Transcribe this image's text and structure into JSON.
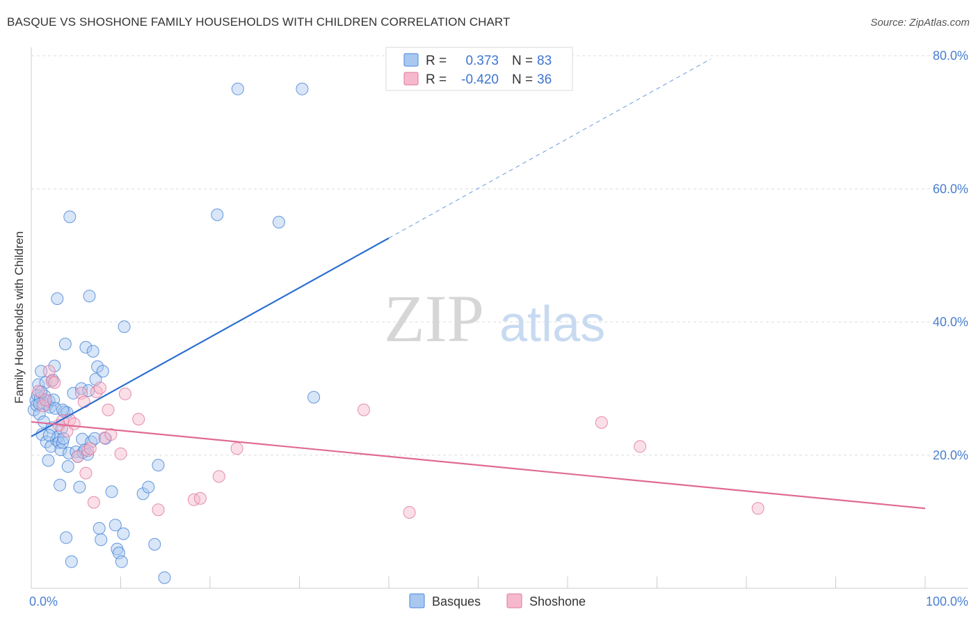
{
  "header": {
    "title": "BASQUE VS SHOSHONE FAMILY HOUSEHOLDS WITH CHILDREN CORRELATION CHART",
    "source": "Source: ZipAtlas.com"
  },
  "watermark": {
    "zip": "ZIP",
    "atlas": "atlas"
  },
  "legend_top": [
    {
      "r_label": "R =",
      "r_value": "0.373",
      "n_label": "N =",
      "n_value": "83"
    },
    {
      "r_label": "R =",
      "r_value": "-0.420",
      "n_label": "N =",
      "n_value": "36"
    }
  ],
  "legend_bottom": [
    {
      "label": "Basques"
    },
    {
      "label": "Shoshone"
    }
  ],
  "chart_data": {
    "type": "scatter",
    "title": "BASQUE VS SHOSHONE FAMILY HOUSEHOLDS WITH CHILDREN CORRELATION CHART",
    "xlabel": "",
    "ylabel": "Family Households with Children",
    "xlim": [
      0,
      100
    ],
    "ylim": [
      0,
      80
    ],
    "x_tick_labels": [
      "0.0%",
      "100.0%"
    ],
    "y_tick_labels": [
      "20.0%",
      "40.0%",
      "60.0%",
      "80.0%"
    ],
    "y_ticks": [
      20,
      40,
      60,
      80
    ],
    "grid": true,
    "legend_position": "top-center",
    "colors": {
      "basques_fill": "#a8c8f0",
      "basques_stroke": "#4a86d8",
      "basques_line": "#2a6fd0",
      "shoshone_fill": "#f5b8cc",
      "shoshone_stroke": "#e07a9c",
      "shoshone_line": "#e06a94"
    },
    "series": [
      {
        "name": "Basques",
        "r": 0.373,
        "n": 83,
        "trend": {
          "x": [
            0,
            40
          ],
          "y": [
            22.8,
            52.6
          ],
          "dashed_to": [
            76,
            79.5
          ]
        },
        "points": [
          [
            0.3,
            26.8
          ],
          [
            0.5,
            28.2
          ],
          [
            0.6,
            27.5
          ],
          [
            0.7,
            29.0
          ],
          [
            0.8,
            30.6
          ],
          [
            0.9,
            26.2
          ],
          [
            1.0,
            28.6
          ],
          [
            1.1,
            32.6
          ],
          [
            1.2,
            23.1
          ],
          [
            1.3,
            27.8
          ],
          [
            1.4,
            25.0
          ],
          [
            1.5,
            28.9
          ],
          [
            1.6,
            30.9
          ],
          [
            1.7,
            22.0
          ],
          [
            1.8,
            27.6
          ],
          [
            1.9,
            19.2
          ],
          [
            2.0,
            28.1
          ],
          [
            2.1,
            27.2
          ],
          [
            2.2,
            21.3
          ],
          [
            2.3,
            24.1
          ],
          [
            2.4,
            31.3
          ],
          [
            2.5,
            28.3
          ],
          [
            2.6,
            33.4
          ],
          [
            2.7,
            27.0
          ],
          [
            2.8,
            22.3
          ],
          [
            2.9,
            43.5
          ],
          [
            3.0,
            22.8
          ],
          [
            3.1,
            21.9
          ],
          [
            3.2,
            15.5
          ],
          [
            3.3,
            20.8
          ],
          [
            3.4,
            24.0
          ],
          [
            3.5,
            21.9
          ],
          [
            3.6,
            22.5
          ],
          [
            3.7,
            26.5
          ],
          [
            3.8,
            36.7
          ],
          [
            3.9,
            7.6
          ],
          [
            4.0,
            26.4
          ],
          [
            4.1,
            18.3
          ],
          [
            4.2,
            20.3
          ],
          [
            4.3,
            55.8
          ],
          [
            4.5,
            4.0
          ],
          [
            4.7,
            29.3
          ],
          [
            5.0,
            20.5
          ],
          [
            5.2,
            19.8
          ],
          [
            5.4,
            15.2
          ],
          [
            5.6,
            30.0
          ],
          [
            5.7,
            22.4
          ],
          [
            5.8,
            20.4
          ],
          [
            6.0,
            20.8
          ],
          [
            6.1,
            36.2
          ],
          [
            6.3,
            20.1
          ],
          [
            6.4,
            29.7
          ],
          [
            6.5,
            43.9
          ],
          [
            6.7,
            22.0
          ],
          [
            6.9,
            35.6
          ],
          [
            7.1,
            22.5
          ],
          [
            7.2,
            31.4
          ],
          [
            7.4,
            33.3
          ],
          [
            7.6,
            9.0
          ],
          [
            7.8,
            7.3
          ],
          [
            8.0,
            32.6
          ],
          [
            8.3,
            22.5
          ],
          [
            9.0,
            14.5
          ],
          [
            9.4,
            9.5
          ],
          [
            9.6,
            5.9
          ],
          [
            9.8,
            5.3
          ],
          [
            10.1,
            4.0
          ],
          [
            10.3,
            8.2
          ],
          [
            10.4,
            39.3
          ],
          [
            12.5,
            14.2
          ],
          [
            13.1,
            15.2
          ],
          [
            13.8,
            6.6
          ],
          [
            14.2,
            18.5
          ],
          [
            14.9,
            1.6
          ],
          [
            20.8,
            56.1
          ],
          [
            23.1,
            75.0
          ],
          [
            27.7,
            55.0
          ],
          [
            30.3,
            75.0
          ],
          [
            31.6,
            28.7
          ],
          [
            1.1,
            29.5
          ],
          [
            2.0,
            23.0
          ],
          [
            3.5,
            26.8
          ],
          [
            0.9,
            27.7
          ]
        ]
      },
      {
        "name": "Shoshone",
        "r": -0.42,
        "n": 36,
        "trend": {
          "x": [
            0,
            100
          ],
          "y": [
            25.0,
            12.0
          ]
        },
        "points": [
          [
            0.8,
            29.6
          ],
          [
            1.3,
            27.4
          ],
          [
            1.6,
            28.3
          ],
          [
            2.0,
            32.6
          ],
          [
            2.3,
            31.1
          ],
          [
            2.6,
            30.9
          ],
          [
            3.1,
            24.5
          ],
          [
            3.5,
            25.2
          ],
          [
            4.0,
            23.6
          ],
          [
            4.3,
            25.3
          ],
          [
            4.8,
            24.7
          ],
          [
            5.2,
            19.8
          ],
          [
            5.6,
            29.3
          ],
          [
            5.9,
            28.0
          ],
          [
            6.1,
            17.3
          ],
          [
            6.3,
            20.7
          ],
          [
            6.6,
            21.0
          ],
          [
            7.0,
            12.9
          ],
          [
            7.3,
            29.5
          ],
          [
            7.7,
            30.1
          ],
          [
            8.2,
            22.6
          ],
          [
            8.6,
            26.8
          ],
          [
            8.9,
            23.1
          ],
          [
            10.0,
            20.2
          ],
          [
            10.5,
            29.2
          ],
          [
            12.0,
            25.4
          ],
          [
            14.2,
            11.8
          ],
          [
            18.2,
            13.3
          ],
          [
            18.9,
            13.5
          ],
          [
            21.0,
            16.8
          ],
          [
            23.0,
            21.0
          ],
          [
            37.2,
            26.8
          ],
          [
            42.3,
            11.4
          ],
          [
            63.8,
            24.9
          ],
          [
            68.1,
            21.3
          ],
          [
            81.3,
            12.0
          ]
        ]
      }
    ]
  }
}
